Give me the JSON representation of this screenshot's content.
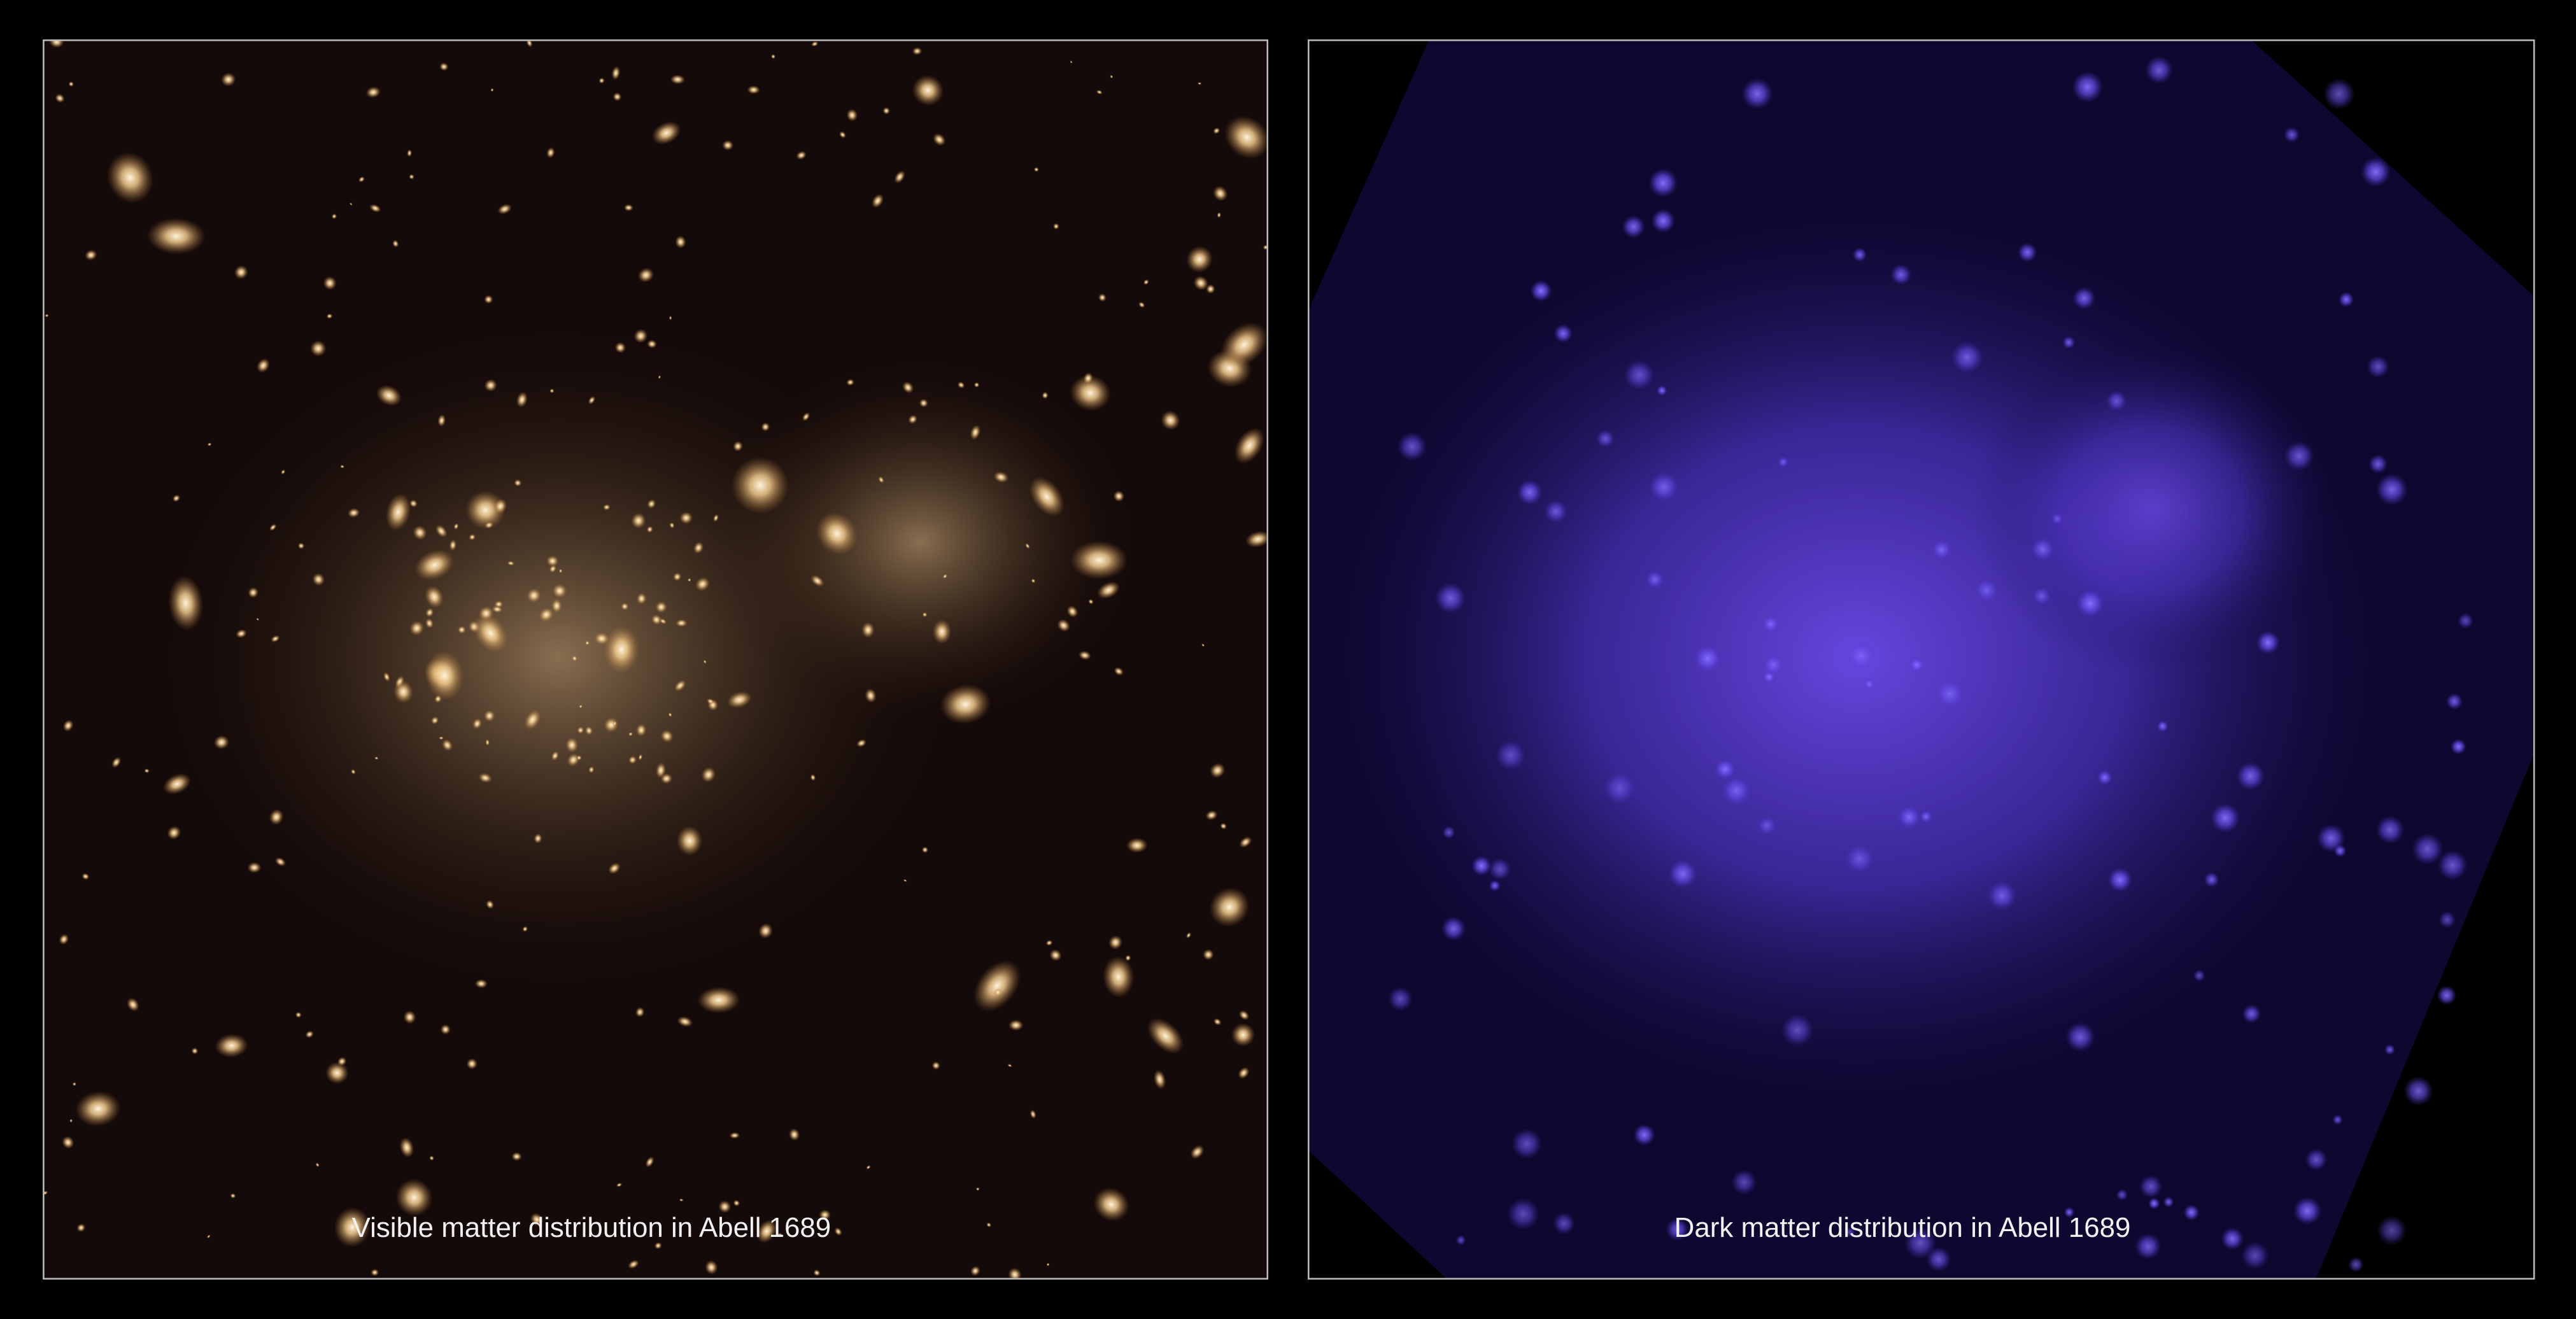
{
  "panels": [
    {
      "caption": "Visible matter distribution in Abell 1689"
    },
    {
      "caption": "Dark matter distribution in Abell 1689"
    }
  ]
}
